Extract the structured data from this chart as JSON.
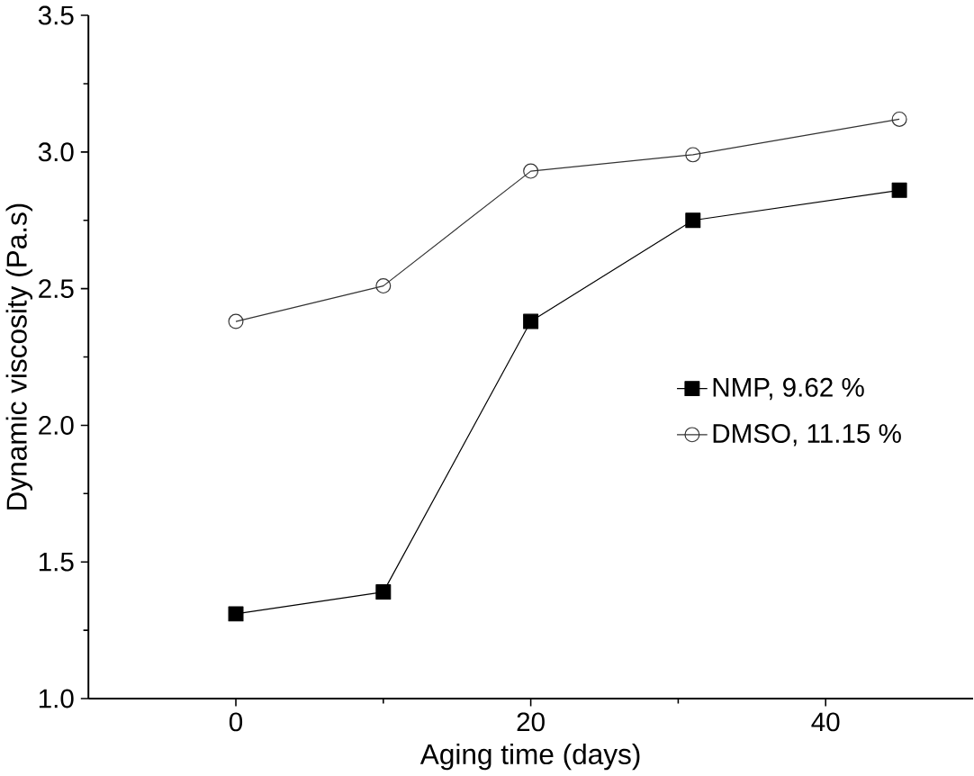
{
  "chart_data": {
    "type": "line",
    "xlabel": "Aging time (days)",
    "ylabel": "Dynamic viscosity (Pa.s)",
    "xlim": [
      -10,
      50
    ],
    "ylim": [
      1.0,
      3.5
    ],
    "xticks": [
      0,
      20,
      40
    ],
    "yticks": [
      {
        "value": 1.0,
        "label": "1.0"
      },
      {
        "value": 1.5,
        "label": "1.5"
      },
      {
        "value": 2.0,
        "label": "2.0"
      },
      {
        "value": 2.5,
        "label": "2.5"
      },
      {
        "value": 3.0,
        "label": "3.0"
      },
      {
        "value": 3.5,
        "label": "3.5"
      }
    ],
    "x": [
      0,
      10,
      20,
      31,
      45
    ],
    "legend": "right",
    "grid": false,
    "series": [
      {
        "name": "NMP, 9.62 %",
        "color": "#000000",
        "marker": "square",
        "values": [
          1.31,
          1.39,
          2.38,
          2.75,
          2.86
        ]
      },
      {
        "name": "DMSO, 11.15 %",
        "color": "#333333",
        "marker": "circle",
        "values": [
          2.38,
          2.51,
          2.93,
          2.99,
          3.12
        ]
      }
    ]
  }
}
